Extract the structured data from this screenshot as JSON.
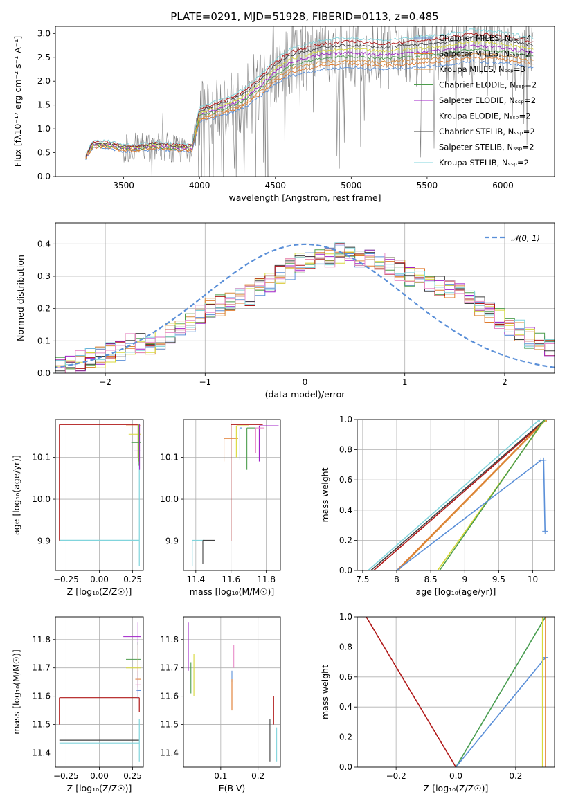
{
  "figure": {
    "title": "PLATE=0291, MJD=51928, FIBERID=0113, z=0.485"
  },
  "chart_data": [
    {
      "id": "spectrum",
      "type": "line",
      "title": "PLATE=0291, MJD=51928, FIBERID=0113, z=0.485",
      "xlabel": "wavelength [Angstrom, rest frame]",
      "ylabel": "Flux [fλ10⁻¹⁷ erg cm⁻² s⁻¹ A⁻¹]",
      "xlim": [
        3050,
        6340
      ],
      "ylim": [
        0,
        3.15
      ],
      "xticks": [
        3500,
        4000,
        4500,
        5000,
        5500,
        6000
      ],
      "yticks": [
        0.0,
        0.5,
        1.0,
        1.5,
        2.0,
        2.5,
        3.0
      ],
      "grid": false,
      "legend_position": "top-right",
      "data_series": {
        "name": "data",
        "color": "#808080",
        "x_start": 3250,
        "x_end": 6200
      },
      "model_continuum": {
        "x": [
          3250,
          3300,
          3400,
          3500,
          3600,
          3700,
          3800,
          3900,
          3950,
          4000,
          4100,
          4200,
          4300,
          4400,
          4500,
          4600,
          4800,
          5000,
          5200,
          5400,
          5600,
          5800,
          6000,
          6200
        ],
        "y": [
          0.42,
          0.68,
          0.66,
          0.6,
          0.6,
          0.65,
          0.62,
          0.6,
          0.6,
          1.3,
          1.4,
          1.5,
          1.65,
          1.9,
          2.2,
          2.4,
          2.55,
          2.6,
          2.55,
          2.6,
          2.65,
          2.75,
          2.7,
          2.6
        ]
      },
      "series": [
        {
          "name": "Chabrier MILES, N_SSP=4",
          "color": "#5a8fd8"
        },
        {
          "name": "Salpeter MILES, N_SSP=2",
          "color": "#e07b2f"
        },
        {
          "name": "Kroupa MILES, N_SSP=3",
          "color": "#d98c3a"
        },
        {
          "name": "Chabrier ELODIE, N_SSP=2",
          "color": "#4d9d4d"
        },
        {
          "name": "Salpeter ELODIE, N_SSP=2",
          "color": "#a020c8"
        },
        {
          "name": "Kroupa ELODIE, N_SSP=2",
          "color": "#d8d838"
        },
        {
          "name": "Chabrier STELIB, N_SSP=2",
          "color": "#404040"
        },
        {
          "name": "Salpeter STELIB, N_SSP=2",
          "color": "#b01818"
        },
        {
          "name": "Kroupa STELIB, N_SSP=2",
          "color": "#80d4dc"
        }
      ]
    },
    {
      "id": "residuals",
      "type": "line",
      "xlabel": "(data-model)/error",
      "ylabel": "Normed distribution",
      "xlim": [
        -2.5,
        2.5
      ],
      "ylim": [
        0,
        0.465
      ],
      "xticks": [
        -2,
        -1,
        0,
        1,
        2
      ],
      "yticks": [
        0.0,
        0.1,
        0.2,
        0.3,
        0.4
      ],
      "grid": true,
      "legend_position": "top-right",
      "gaussian": {
        "name": "𝒩(0, 1)",
        "mu": 0,
        "sigma": 1,
        "color": "#5a8fd8"
      },
      "bin_edges_start": -2.5,
      "bin_width": 0.1,
      "histogram_envelope": [
        0.02,
        0.03,
        0.04,
        0.05,
        0.05,
        0.06,
        0.07,
        0.09,
        0.09,
        0.09,
        0.1,
        0.12,
        0.14,
        0.16,
        0.18,
        0.2,
        0.21,
        0.22,
        0.23,
        0.24,
        0.26,
        0.28,
        0.3,
        0.32,
        0.34,
        0.35,
        0.36,
        0.36,
        0.37,
        0.37,
        0.36,
        0.35,
        0.34,
        0.33,
        0.32,
        0.3,
        0.29,
        0.28,
        0.27,
        0.26,
        0.25,
        0.23,
        0.21,
        0.19,
        0.17,
        0.15,
        0.13,
        0.11,
        0.09,
        0.07
      ]
    },
    {
      "id": "age-vs-Z",
      "type": "line",
      "xlabel": "Z [log₁₀(Z/Z☉)]",
      "ylabel": "age  [log₁₀(age/yr)]",
      "xlim": [
        -0.33,
        0.33
      ],
      "ylim": [
        9.83,
        10.19
      ],
      "xticks": [
        -0.25,
        0.0,
        0.25
      ],
      "xticklabels": [
        "−0.25",
        "0.00",
        "0.25"
      ],
      "yticks": [
        9.9,
        10.0,
        10.1
      ],
      "grid": true
    },
    {
      "id": "age-vs-mass",
      "type": "line",
      "xlabel": "mass [log₁₀(M/M☉)]",
      "ylabel": "",
      "xlim": [
        11.33,
        11.88
      ],
      "ylim": [
        9.83,
        10.19
      ],
      "xticks": [
        11.4,
        11.6,
        11.8
      ],
      "yticks": [
        9.9,
        10.0,
        10.1
      ],
      "grid": true
    },
    {
      "id": "mass-weight-vs-age",
      "type": "line",
      "xlabel": "age  [log₁₀(age/yr)]",
      "ylabel": "mass weight",
      "xlim": [
        7.42,
        10.32
      ],
      "ylim": [
        0,
        1.0
      ],
      "xticks": [
        7.5,
        8.0,
        8.5,
        9.0,
        9.5,
        10.0
      ],
      "yticks": [
        0.0,
        0.2,
        0.4,
        0.6,
        0.8,
        1.0
      ],
      "grid": true,
      "lines": [
        {
          "color": "#80d4dc",
          "x": [
            7.58,
            10.1
          ],
          "y": [
            0,
            1.0
          ]
        },
        {
          "color": "#404040",
          "x": [
            7.62,
            10.18
          ],
          "y": [
            0,
            1.0
          ]
        },
        {
          "color": "#b01818",
          "x": [
            7.66,
            10.2
          ],
          "y": [
            0,
            1.0
          ]
        },
        {
          "color": "#e07b2f",
          "x": [
            8.0,
            10.19
          ],
          "y": [
            0,
            1.0
          ]
        },
        {
          "color": "#d98c3a",
          "x": [
            8.02,
            10.2
          ],
          "y": [
            0,
            1.0
          ]
        },
        {
          "color": "#d8d838",
          "x": [
            8.6,
            10.18
          ],
          "y": [
            0,
            1.0
          ]
        },
        {
          "color": "#4d9d4d",
          "x": [
            8.63,
            10.17
          ],
          "y": [
            0,
            1.0
          ]
        },
        {
          "color": "#5a8fd8",
          "x": [
            8.0,
            10.12,
            10.16,
            10.18
          ],
          "y": [
            0,
            0.73,
            0.73,
            0.26
          ]
        }
      ]
    },
    {
      "id": "mass-vs-Z",
      "type": "line",
      "xlabel": "Z [log₁₀(Z/Z☉)]",
      "ylabel": "mass [log₁₀(M/M☉)]",
      "xlim": [
        -0.33,
        0.33
      ],
      "ylim": [
        11.35,
        11.88
      ],
      "xticks": [
        -0.25,
        0.0,
        0.25
      ],
      "xticklabels": [
        "−0.25",
        "0.00",
        "0.25"
      ],
      "yticks": [
        11.4,
        11.5,
        11.6,
        11.7,
        11.8
      ],
      "grid": true
    },
    {
      "id": "mass-vs-ebv",
      "type": "line",
      "xlabel": "E(B-V)",
      "ylabel": "",
      "xlim": [
        0.0,
        0.26
      ],
      "ylim": [
        11.35,
        11.88
      ],
      "xticks": [
        0.1,
        0.2
      ],
      "yticks": [
        11.4,
        11.5,
        11.6,
        11.7,
        11.8
      ],
      "grid": true
    },
    {
      "id": "mass-weight-vs-Z",
      "type": "line",
      "xlabel": "Z [log₁₀(Z/Z☉)]",
      "ylabel": "mass weight",
      "xlim": [
        -0.33,
        0.33
      ],
      "ylim": [
        0,
        1.0
      ],
      "xticks": [
        -0.2,
        0.0,
        0.2
      ],
      "xticklabels": [
        "−0.2",
        "0.0",
        "0.2"
      ],
      "yticks": [
        0.0,
        0.2,
        0.4,
        0.6,
        0.8,
        1.0
      ],
      "grid": true,
      "lines": [
        {
          "color": "#b01818",
          "x": [
            -0.3,
            0.0
          ],
          "y": [
            1.0,
            0.0
          ]
        },
        {
          "color": "#80d4dc",
          "x": [
            0.0,
            0.3
          ],
          "y": [
            0.0,
            1.0
          ]
        },
        {
          "color": "#4d9d4d",
          "x": [
            0.0,
            0.3
          ],
          "y": [
            0.0,
            1.0
          ]
        },
        {
          "color": "#5a8fd8",
          "x": [
            0.0,
            0.3
          ],
          "y": [
            0.0,
            0.73
          ]
        },
        {
          "color": "#d8d838",
          "x": [
            0.29,
            0.29
          ],
          "y": [
            0.0,
            1.0
          ]
        },
        {
          "color": "#e07b2f",
          "x": [
            0.3,
            0.3
          ],
          "y": [
            0.0,
            1.0
          ]
        }
      ]
    }
  ]
}
